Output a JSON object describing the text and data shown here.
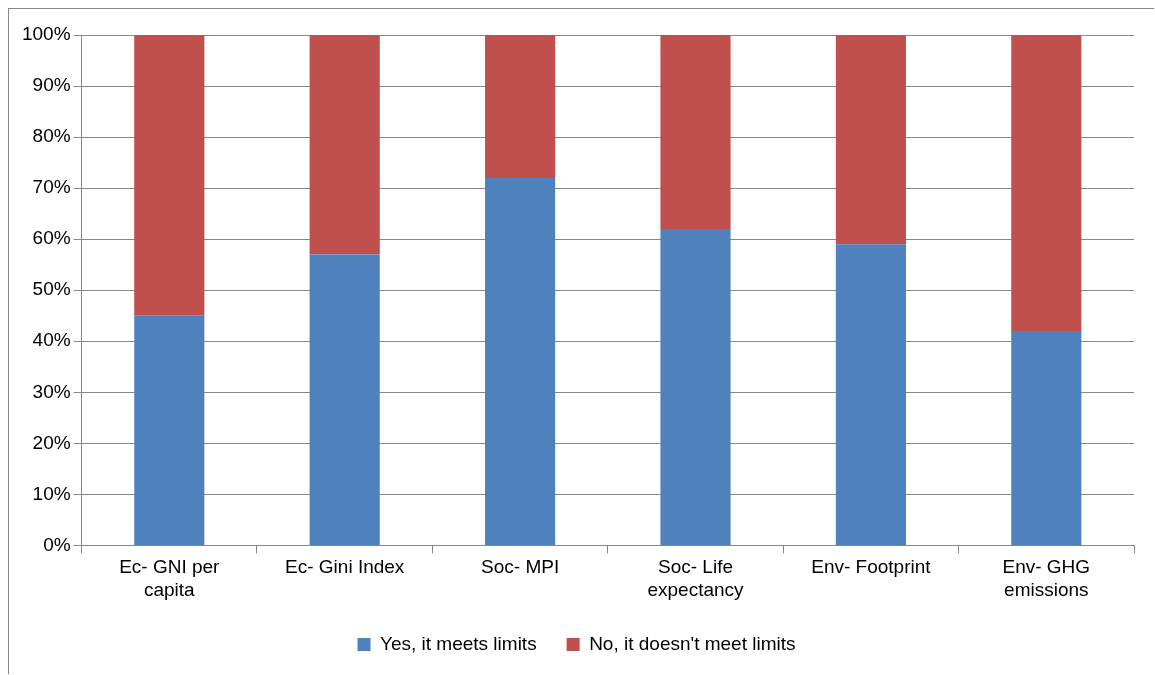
{
  "chart_data": {
    "type": "bar",
    "stacked": true,
    "categories": [
      "Ec- GNI per capita",
      "Ec- Gini Index",
      "Soc- MPI",
      "Soc- Life expectancy",
      "Env- Footprint",
      "Env- GHG emissions"
    ],
    "series": [
      {
        "name": "Yes, it meets limits",
        "color": "#4f81bd",
        "values": [
          45,
          57,
          72,
          62,
          59,
          42
        ]
      },
      {
        "name": "No, it doesn't meet limits",
        "color": "#c0504d",
        "values": [
          55,
          43,
          28,
          38,
          41,
          58
        ]
      }
    ],
    "ylim": [
      0,
      100
    ],
    "yticks": [
      {
        "value": 0,
        "label": "0%"
      },
      {
        "value": 10,
        "label": "10%"
      },
      {
        "value": 20,
        "label": "20%"
      },
      {
        "value": 30,
        "label": "30%"
      },
      {
        "value": 40,
        "label": "40%"
      },
      {
        "value": 50,
        "label": "50%"
      },
      {
        "value": 60,
        "label": "60%"
      },
      {
        "value": 70,
        "label": "70%"
      },
      {
        "value": 80,
        "label": "80%"
      },
      {
        "value": 90,
        "label": "90%"
      },
      {
        "value": 100,
        "label": "100%"
      }
    ],
    "grid": "y",
    "legend": "bottom"
  }
}
